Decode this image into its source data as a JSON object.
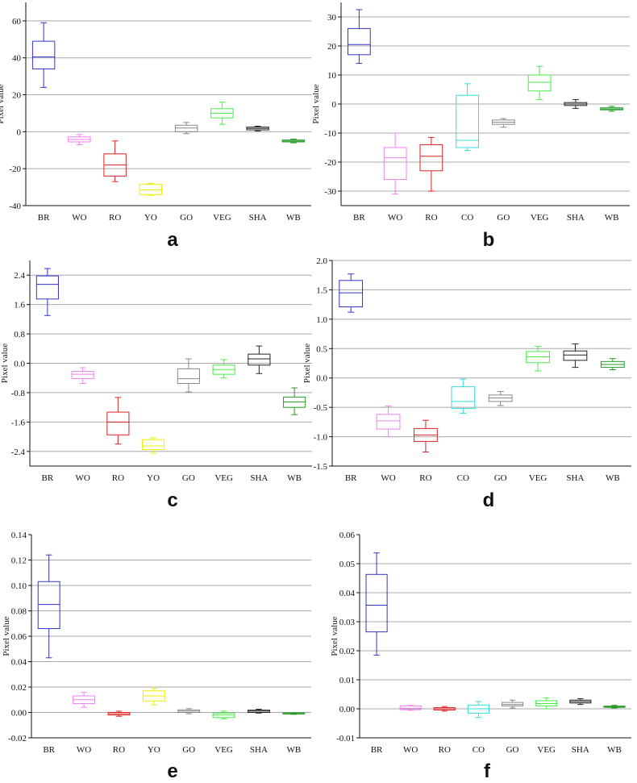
{
  "chart_data": [
    {
      "type": "box",
      "panel_label": "a",
      "ylabel": "Pixel value",
      "ylim": [
        -40,
        70
      ],
      "yticks": [
        {
          "value": -40,
          "label": "-40"
        },
        {
          "value": -20,
          "label": "-20"
        },
        {
          "value": 0,
          "label": "0"
        },
        {
          "value": 20,
          "label": "20"
        },
        {
          "value": 40,
          "label": "40"
        },
        {
          "value": 60,
          "label": "60"
        }
      ],
      "gridlines": [
        -20,
        0,
        20,
        40,
        60
      ],
      "grid": true,
      "categories": [
        "BR",
        "WO",
        "RO",
        "YO",
        "GO",
        "VEG",
        "SHA",
        "WB"
      ],
      "boxes": [
        {
          "name": "BR",
          "color": "#3333cc",
          "whisker_low": 24,
          "q1": 34,
          "median": 40.5,
          "q3": 49,
          "whisker_high": 59
        },
        {
          "name": "WO",
          "color": "#ee82ee",
          "whisker_low": -7,
          "q1": -5.5,
          "median": -4.2,
          "q3": -2.8,
          "whisker_high": -1.5
        },
        {
          "name": "RO",
          "color": "#dd2222",
          "whisker_low": -27,
          "q1": -24,
          "median": -18,
          "q3": -12,
          "whisker_high": -5
        },
        {
          "name": "YO",
          "color": "#eeee00",
          "whisker_low": -34.5,
          "q1": -34,
          "median": -31.5,
          "q3": -28.5,
          "whisker_high": -28
        },
        {
          "name": "GO",
          "color": "#888888",
          "whisker_low": -1,
          "q1": 0,
          "median": 2,
          "q3": 3.5,
          "whisker_high": 5
        },
        {
          "name": "VEG",
          "color": "#44ee44",
          "whisker_low": 4,
          "q1": 7.5,
          "median": 10,
          "q3": 12.5,
          "whisker_high": 16
        },
        {
          "name": "SHA",
          "color": "#222222",
          "whisker_low": 0.5,
          "q1": 1,
          "median": 1.8,
          "q3": 2.5,
          "whisker_high": 3
        },
        {
          "name": "WB",
          "color": "#229922",
          "whisker_low": -6,
          "q1": -5.5,
          "median": -5,
          "q3": -4.5,
          "whisker_high": -4
        }
      ]
    },
    {
      "type": "box",
      "panel_label": "b",
      "ylabel": "Pixel value",
      "ylim": [
        -35,
        35
      ],
      "yticks": [
        {
          "value": -30,
          "label": "-30"
        },
        {
          "value": -20,
          "label": "-20"
        },
        {
          "value": -10,
          "label": "-10"
        },
        {
          "value": 0,
          "label": "0"
        },
        {
          "value": 10,
          "label": "10"
        },
        {
          "value": 20,
          "label": "20"
        },
        {
          "value": 30,
          "label": "30"
        }
      ],
      "gridlines": [
        -30,
        -20,
        -10,
        0,
        10,
        20,
        30
      ],
      "grid": true,
      "categories": [
        "BR",
        "WO",
        "RO",
        "CO",
        "GO",
        "VEG",
        "SHA",
        "WB"
      ],
      "boxes": [
        {
          "name": "BR",
          "color": "#3333cc",
          "whisker_low": 14,
          "q1": 17,
          "median": 20.5,
          "q3": 26,
          "whisker_high": 32.5
        },
        {
          "name": "WO",
          "color": "#ee82ee",
          "whisker_low": -31,
          "q1": -26,
          "median": -18.5,
          "q3": -15,
          "whisker_high": -10
        },
        {
          "name": "RO",
          "color": "#dd2222",
          "whisker_low": -30,
          "q1": -23,
          "median": -18,
          "q3": -14,
          "whisker_high": -11.5
        },
        {
          "name": "CO",
          "color": "#33dddd",
          "whisker_low": -16,
          "q1": -15,
          "median": -12.5,
          "q3": 3,
          "whisker_high": 7
        },
        {
          "name": "GO",
          "color": "#888888",
          "whisker_low": -8,
          "q1": -7,
          "median": -6.3,
          "q3": -5.5,
          "whisker_high": -5
        },
        {
          "name": "VEG",
          "color": "#44ee44",
          "whisker_low": 1.5,
          "q1": 4.5,
          "median": 7.5,
          "q3": 10,
          "whisker_high": 13
        },
        {
          "name": "SHA",
          "color": "#222222",
          "whisker_low": -1.5,
          "q1": -0.5,
          "median": 0,
          "q3": 0.5,
          "whisker_high": 1.5
        },
        {
          "name": "WB",
          "color": "#229922",
          "whisker_low": -2.5,
          "q1": -2,
          "median": -1.7,
          "q3": -1.3,
          "whisker_high": -0.8
        }
      ]
    },
    {
      "type": "box",
      "panel_label": "c",
      "ylabel": "Pixel value",
      "ylim": [
        -2.8,
        2.8
      ],
      "yticks": [
        {
          "value": -2.4,
          "label": "-2.4"
        },
        {
          "value": -1.6,
          "label": "-1.6"
        },
        {
          "value": -0.8,
          "label": "-0.8"
        },
        {
          "value": 0,
          "label": "0.0"
        },
        {
          "value": 0.8,
          "label": "0.8"
        },
        {
          "value": 1.6,
          "label": "1.6"
        },
        {
          "value": 2.4,
          "label": "2.4"
        }
      ],
      "gridlines": [
        -2.4,
        -1.6,
        -0.8,
        0,
        0.8,
        1.6,
        2.4
      ],
      "grid": true,
      "categories": [
        "BR",
        "WO",
        "RO",
        "YO",
        "GO",
        "VEG",
        "SHA",
        "WB"
      ],
      "boxes": [
        {
          "name": "BR",
          "color": "#3333cc",
          "whisker_low": 1.3,
          "q1": 1.75,
          "median": 2.15,
          "q3": 2.38,
          "whisker_high": 2.58
        },
        {
          "name": "WO",
          "color": "#ee82ee",
          "whisker_low": -0.55,
          "q1": -0.42,
          "median": -0.3,
          "q3": -0.22,
          "whisker_high": -0.12
        },
        {
          "name": "RO",
          "color": "#dd2222",
          "whisker_low": -2.2,
          "q1": -1.95,
          "median": -1.6,
          "q3": -1.33,
          "whisker_high": -0.93
        },
        {
          "name": "YO",
          "color": "#eeee00",
          "whisker_low": -2.45,
          "q1": -2.35,
          "median": -2.25,
          "q3": -2.08,
          "whisker_high": -2.03
        },
        {
          "name": "GO",
          "color": "#888888",
          "whisker_low": -0.78,
          "q1": -0.55,
          "median": -0.42,
          "q3": -0.15,
          "whisker_high": 0.12
        },
        {
          "name": "VEG",
          "color": "#44ee44",
          "whisker_low": -0.4,
          "q1": -0.3,
          "median": -0.17,
          "q3": -0.05,
          "whisker_high": 0.1
        },
        {
          "name": "SHA",
          "color": "#222222",
          "whisker_low": -0.28,
          "q1": -0.05,
          "median": 0.12,
          "q3": 0.25,
          "whisker_high": 0.47
        },
        {
          "name": "WB",
          "color": "#229922",
          "whisker_low": -1.4,
          "q1": -1.2,
          "median": -1.05,
          "q3": -0.92,
          "whisker_high": -0.67
        }
      ]
    },
    {
      "type": "box",
      "panel_label": "d",
      "ylabel": "Pixel value",
      "ylim": [
        -1.5,
        2.0
      ],
      "yticks": [
        {
          "value": -1.5,
          "label": "-1.5"
        },
        {
          "value": -1.0,
          "label": "-1.0"
        },
        {
          "value": -0.5,
          "label": "-0.5"
        },
        {
          "value": 0,
          "label": "0.0"
        },
        {
          "value": 0.5,
          "label": "0.5"
        },
        {
          "value": 1.0,
          "label": "1.0"
        },
        {
          "value": 1.5,
          "label": "1.5"
        },
        {
          "value": 2.0,
          "label": "2.0"
        }
      ],
      "gridlines": [
        -1.0,
        -0.5,
        0,
        0.5,
        1.0,
        1.5,
        2.0
      ],
      "grid": true,
      "categories": [
        "BR",
        "WO",
        "RO",
        "CO",
        "GO",
        "VEG",
        "SHA",
        "WB"
      ],
      "boxes": [
        {
          "name": "BR",
          "color": "#3333cc",
          "whisker_low": 1.12,
          "q1": 1.21,
          "median": 1.45,
          "q3": 1.66,
          "whisker_high": 1.77
        },
        {
          "name": "WO",
          "color": "#ee82ee",
          "whisker_low": -1.0,
          "q1": -0.87,
          "median": -0.73,
          "q3": -0.62,
          "whisker_high": -0.48
        },
        {
          "name": "RO",
          "color": "#dd2222",
          "whisker_low": -1.26,
          "q1": -1.08,
          "median": -0.97,
          "q3": -0.86,
          "whisker_high": -0.72
        },
        {
          "name": "CO",
          "color": "#33dddd",
          "whisker_low": -0.6,
          "q1": -0.52,
          "median": -0.4,
          "q3": -0.15,
          "whisker_high": -0.02
        },
        {
          "name": "GO",
          "color": "#888888",
          "whisker_low": -0.47,
          "q1": -0.4,
          "median": -0.34,
          "q3": -0.29,
          "whisker_high": -0.23
        },
        {
          "name": "VEG",
          "color": "#44ee44",
          "whisker_low": 0.12,
          "q1": 0.26,
          "median": 0.36,
          "q3": 0.45,
          "whisker_high": 0.54
        },
        {
          "name": "SHA",
          "color": "#222222",
          "whisker_low": 0.18,
          "q1": 0.3,
          "median": 0.39,
          "q3": 0.46,
          "whisker_high": 0.58
        },
        {
          "name": "WB",
          "color": "#229922",
          "whisker_low": 0.14,
          "q1": 0.18,
          "median": 0.23,
          "q3": 0.28,
          "whisker_high": 0.33
        }
      ]
    },
    {
      "type": "box",
      "panel_label": "e",
      "ylabel": "Pixel value",
      "ylim": [
        -0.02,
        0.14
      ],
      "yticks": [
        {
          "value": -0.02,
          "label": "-0.02"
        },
        {
          "value": 0,
          "label": "0.00"
        },
        {
          "value": 0.02,
          "label": "0.02"
        },
        {
          "value": 0.04,
          "label": "0.04"
        },
        {
          "value": 0.06,
          "label": "0.06"
        },
        {
          "value": 0.08,
          "label": "0.08"
        },
        {
          "value": 0.1,
          "label": "0.10"
        },
        {
          "value": 0.12,
          "label": "0.12"
        },
        {
          "value": 0.14,
          "label": "0.14"
        }
      ],
      "gridlines": [
        0,
        0.02,
        0.04,
        0.06,
        0.08,
        0.1,
        0.12
      ],
      "grid": true,
      "categories": [
        "BR",
        "WO",
        "RO",
        "YO",
        "GO",
        "VEG",
        "SHA",
        "WB"
      ],
      "boxes": [
        {
          "name": "BR",
          "color": "#3333cc",
          "whisker_low": 0.043,
          "q1": 0.066,
          "median": 0.085,
          "q3": 0.103,
          "whisker_high": 0.124
        },
        {
          "name": "WO",
          "color": "#ee82ee",
          "whisker_low": 0.004,
          "q1": 0.007,
          "median": 0.01,
          "q3": 0.013,
          "whisker_high": 0.016
        },
        {
          "name": "RO",
          "color": "#dd2222",
          "whisker_low": -0.003,
          "q1": -0.002,
          "median": -0.001,
          "q3": 0.0,
          "whisker_high": 0.001
        },
        {
          "name": "YO",
          "color": "#eeee00",
          "whisker_low": 0.006,
          "q1": 0.009,
          "median": 0.013,
          "q3": 0.017,
          "whisker_high": 0.019
        },
        {
          "name": "GO",
          "color": "#888888",
          "whisker_low": -0.001,
          "q1": 0.0,
          "median": 0.001,
          "q3": 0.002,
          "whisker_high": 0.003
        },
        {
          "name": "VEG",
          "color": "#44ee44",
          "whisker_low": -0.005,
          "q1": -0.004,
          "median": -0.002,
          "q3": -0.0005,
          "whisker_high": 0.001
        },
        {
          "name": "SHA",
          "color": "#222222",
          "whisker_low": -0.0005,
          "q1": 0.0,
          "median": 0.001,
          "q3": 0.0018,
          "whisker_high": 0.0025
        },
        {
          "name": "WB",
          "color": "#229922",
          "whisker_low": -0.0015,
          "q1": -0.0012,
          "median": -0.001,
          "q3": -0.0008,
          "whisker_high": -0.0005
        }
      ]
    },
    {
      "type": "box",
      "panel_label": "f",
      "ylabel": "Pixel value",
      "ylim": [
        -0.01,
        0.06
      ],
      "yticks": [
        {
          "value": -0.01,
          "label": "-0.01"
        },
        {
          "value": 0,
          "label": "0.00"
        },
        {
          "value": 0.01,
          "label": "0.01"
        },
        {
          "value": 0.02,
          "label": "0.02"
        },
        {
          "value": 0.03,
          "label": "0.03"
        },
        {
          "value": 0.04,
          "label": "0.04"
        },
        {
          "value": 0.05,
          "label": "0.05"
        },
        {
          "value": 0.06,
          "label": "0.06"
        }
      ],
      "gridlines": [
        0,
        0.01,
        0.02,
        0.03,
        0.04,
        0.05
      ],
      "grid": true,
      "categories": [
        "BR",
        "WO",
        "RO",
        "CO",
        "GO",
        "VEG",
        "SHA",
        "WB"
      ],
      "boxes": [
        {
          "name": "BR",
          "color": "#3333cc",
          "whisker_low": 0.0185,
          "q1": 0.0265,
          "median": 0.0357,
          "q3": 0.0463,
          "whisker_high": 0.0537
        },
        {
          "name": "WO",
          "color": "#ee82ee",
          "whisker_low": -0.0005,
          "q1": -0.0003,
          "median": 0.0002,
          "q3": 0.001,
          "whisker_high": 0.0012
        },
        {
          "name": "RO",
          "color": "#dd2222",
          "whisker_low": -0.0008,
          "q1": -0.0004,
          "median": 0.0,
          "q3": 0.0004,
          "whisker_high": 0.0008
        },
        {
          "name": "CO",
          "color": "#33dddd",
          "whisker_low": -0.003,
          "q1": -0.0015,
          "median": 0.0,
          "q3": 0.0013,
          "whisker_high": 0.0025
        },
        {
          "name": "GO",
          "color": "#888888",
          "whisker_low": 0.0003,
          "q1": 0.001,
          "median": 0.0015,
          "q3": 0.0022,
          "whisker_high": 0.003
        },
        {
          "name": "VEG",
          "color": "#44ee44",
          "whisker_low": 0.0,
          "q1": 0.001,
          "median": 0.0018,
          "q3": 0.0028,
          "whisker_high": 0.0037
        },
        {
          "name": "SHA",
          "color": "#222222",
          "whisker_low": 0.0015,
          "q1": 0.002,
          "median": 0.0025,
          "q3": 0.003,
          "whisker_high": 0.0035
        },
        {
          "name": "WB",
          "color": "#229922",
          "whisker_low": 0.0003,
          "q1": 0.0005,
          "median": 0.0007,
          "q3": 0.0009,
          "whisker_high": 0.0012
        }
      ]
    }
  ]
}
